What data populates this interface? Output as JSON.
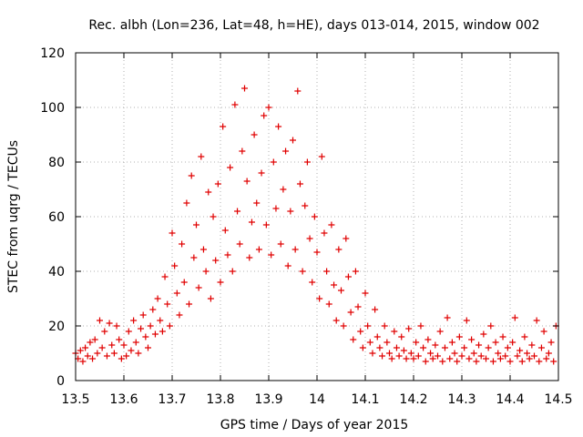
{
  "chart_data": {
    "type": "scatter",
    "title": "Rec. albh (Lon=236, Lat=48, h=HE), days 013-014, 2015, window 002",
    "xlabel": "GPS time / Days of year 2015",
    "ylabel": "STEC from uqrg / TECUs",
    "xlim": [
      13.5,
      14.5
    ],
    "ylim": [
      0,
      120
    ],
    "x_ticks": [
      "13.5",
      "13.6",
      "13.7",
      "13.8",
      "13.9",
      "14",
      "14.1",
      "14.2",
      "14.3",
      "14.4",
      "14.5"
    ],
    "y_ticks": [
      "0",
      "20",
      "40",
      "60",
      "80",
      "100",
      "120"
    ],
    "grid": true,
    "marker": "+",
    "color": "#e00000",
    "series": [
      {
        "points": [
          [
            13.5,
            10
          ],
          [
            13.505,
            8
          ],
          [
            13.51,
            11
          ],
          [
            13.515,
            7
          ],
          [
            13.52,
            12
          ],
          [
            13.525,
            9
          ],
          [
            13.53,
            14
          ],
          [
            13.535,
            8
          ],
          [
            13.54,
            15
          ],
          [
            13.545,
            10
          ],
          [
            13.55,
            22
          ],
          [
            13.555,
            12
          ],
          [
            13.56,
            18
          ],
          [
            13.565,
            9
          ],
          [
            13.57,
            21
          ],
          [
            13.575,
            13
          ],
          [
            13.58,
            10
          ],
          [
            13.585,
            20
          ],
          [
            13.59,
            15
          ],
          [
            13.595,
            8
          ],
          [
            13.6,
            13
          ],
          [
            13.605,
            9
          ],
          [
            13.61,
            18
          ],
          [
            13.615,
            11
          ],
          [
            13.62,
            22
          ],
          [
            13.625,
            14
          ],
          [
            13.63,
            10
          ],
          [
            13.635,
            19
          ],
          [
            13.64,
            24
          ],
          [
            13.645,
            16
          ],
          [
            13.65,
            12
          ],
          [
            13.655,
            20
          ],
          [
            13.66,
            26
          ],
          [
            13.665,
            17
          ],
          [
            13.67,
            30
          ],
          [
            13.675,
            22
          ],
          [
            13.68,
            18
          ],
          [
            13.685,
            38
          ],
          [
            13.69,
            28
          ],
          [
            13.695,
            20
          ],
          [
            13.7,
            54
          ],
          [
            13.705,
            42
          ],
          [
            13.71,
            32
          ],
          [
            13.715,
            24
          ],
          [
            13.72,
            50
          ],
          [
            13.725,
            36
          ],
          [
            13.73,
            65
          ],
          [
            13.735,
            28
          ],
          [
            13.74,
            75
          ],
          [
            13.745,
            45
          ],
          [
            13.75,
            57
          ],
          [
            13.755,
            34
          ],
          [
            13.76,
            82
          ],
          [
            13.765,
            48
          ],
          [
            13.77,
            40
          ],
          [
            13.775,
            69
          ],
          [
            13.78,
            30
          ],
          [
            13.785,
            60
          ],
          [
            13.79,
            44
          ],
          [
            13.795,
            72
          ],
          [
            13.8,
            36
          ],
          [
            13.805,
            93
          ],
          [
            13.81,
            55
          ],
          [
            13.815,
            46
          ],
          [
            13.82,
            78
          ],
          [
            13.825,
            40
          ],
          [
            13.83,
            101
          ],
          [
            13.835,
            62
          ],
          [
            13.84,
            50
          ],
          [
            13.845,
            84
          ],
          [
            13.85,
            107
          ],
          [
            13.855,
            73
          ],
          [
            13.86,
            45
          ],
          [
            13.865,
            58
          ],
          [
            13.87,
            90
          ],
          [
            13.875,
            65
          ],
          [
            13.88,
            48
          ],
          [
            13.885,
            76
          ],
          [
            13.89,
            97
          ],
          [
            13.895,
            57
          ],
          [
            13.9,
            100
          ],
          [
            13.905,
            46
          ],
          [
            13.91,
            80
          ],
          [
            13.915,
            63
          ],
          [
            13.92,
            93
          ],
          [
            13.925,
            50
          ],
          [
            13.93,
            70
          ],
          [
            13.935,
            84
          ],
          [
            13.94,
            42
          ],
          [
            13.945,
            62
          ],
          [
            13.95,
            88
          ],
          [
            13.955,
            48
          ],
          [
            13.96,
            106
          ],
          [
            13.965,
            72
          ],
          [
            13.97,
            40
          ],
          [
            13.975,
            64
          ],
          [
            13.98,
            80
          ],
          [
            13.985,
            52
          ],
          [
            13.99,
            36
          ],
          [
            13.995,
            60
          ],
          [
            14.0,
            47
          ],
          [
            14.005,
            30
          ],
          [
            14.01,
            82
          ],
          [
            14.015,
            54
          ],
          [
            14.02,
            40
          ],
          [
            14.025,
            28
          ],
          [
            14.03,
            57
          ],
          [
            14.035,
            35
          ],
          [
            14.04,
            22
          ],
          [
            14.045,
            48
          ],
          [
            14.05,
            33
          ],
          [
            14.055,
            20
          ],
          [
            14.06,
            52
          ],
          [
            14.065,
            38
          ],
          [
            14.07,
            25
          ],
          [
            14.075,
            15
          ],
          [
            14.08,
            40
          ],
          [
            14.085,
            27
          ],
          [
            14.09,
            18
          ],
          [
            14.095,
            12
          ],
          [
            14.1,
            32
          ],
          [
            14.105,
            20
          ],
          [
            14.11,
            14
          ],
          [
            14.115,
            10
          ],
          [
            14.12,
            26
          ],
          [
            14.125,
            16
          ],
          [
            14.13,
            12
          ],
          [
            14.135,
            9
          ],
          [
            14.14,
            20
          ],
          [
            14.145,
            14
          ],
          [
            14.15,
            10
          ],
          [
            14.155,
            8
          ],
          [
            14.16,
            18
          ],
          [
            14.165,
            12
          ],
          [
            14.17,
            9
          ],
          [
            14.175,
            16
          ],
          [
            14.18,
            11
          ],
          [
            14.185,
            8
          ],
          [
            14.19,
            19
          ],
          [
            14.195,
            10
          ],
          [
            14.2,
            8
          ],
          [
            14.205,
            14
          ],
          [
            14.21,
            9
          ],
          [
            14.215,
            20
          ],
          [
            14.22,
            12
          ],
          [
            14.225,
            7
          ],
          [
            14.23,
            15
          ],
          [
            14.235,
            10
          ],
          [
            14.24,
            8
          ],
          [
            14.245,
            13
          ],
          [
            14.25,
            9
          ],
          [
            14.255,
            18
          ],
          [
            14.26,
            7
          ],
          [
            14.265,
            12
          ],
          [
            14.27,
            23
          ],
          [
            14.275,
            8
          ],
          [
            14.28,
            14
          ],
          [
            14.285,
            10
          ],
          [
            14.29,
            7
          ],
          [
            14.295,
            16
          ],
          [
            14.3,
            9
          ],
          [
            14.305,
            12
          ],
          [
            14.31,
            22
          ],
          [
            14.315,
            8
          ],
          [
            14.32,
            15
          ],
          [
            14.325,
            10
          ],
          [
            14.33,
            7
          ],
          [
            14.335,
            13
          ],
          [
            14.34,
            9
          ],
          [
            14.345,
            17
          ],
          [
            14.35,
            8
          ],
          [
            14.355,
            12
          ],
          [
            14.36,
            20
          ],
          [
            14.365,
            7
          ],
          [
            14.37,
            14
          ],
          [
            14.375,
            10
          ],
          [
            14.38,
            8
          ],
          [
            14.385,
            16
          ],
          [
            14.39,
            9
          ],
          [
            14.395,
            12
          ],
          [
            14.4,
            7
          ],
          [
            14.405,
            14
          ],
          [
            14.41,
            23
          ],
          [
            14.415,
            9
          ],
          [
            14.42,
            11
          ],
          [
            14.425,
            7
          ],
          [
            14.43,
            16
          ],
          [
            14.435,
            10
          ],
          [
            14.44,
            8
          ],
          [
            14.445,
            13
          ],
          [
            14.45,
            9
          ],
          [
            14.455,
            22
          ],
          [
            14.46,
            7
          ],
          [
            14.465,
            12
          ],
          [
            14.47,
            18
          ],
          [
            14.475,
            8
          ],
          [
            14.48,
            10
          ],
          [
            14.485,
            14
          ],
          [
            14.49,
            7
          ],
          [
            14.495,
            20
          ]
        ]
      }
    ]
  }
}
